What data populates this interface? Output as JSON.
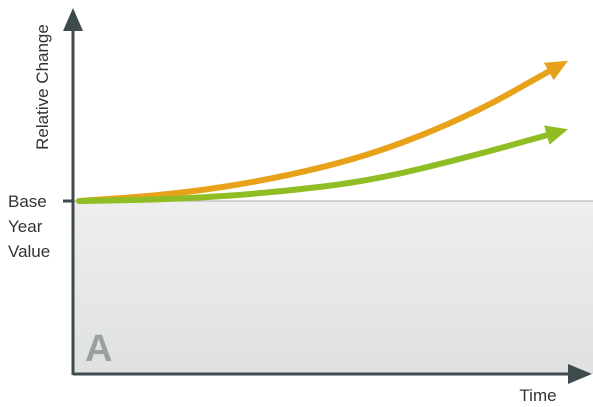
{
  "chart_data": {
    "type": "line",
    "panel_label": "A",
    "xlabel": "Time",
    "ylabel": "Relative Change",
    "baseline_label": [
      "Base",
      "Year",
      "Value"
    ],
    "xlim": [
      0,
      1
    ],
    "ylim": [
      -1,
      1
    ],
    "baseline_value": 0,
    "grid": false,
    "legend": "none",
    "colors": {
      "axis": "#3f4a4e",
      "baseline": "#b8bcbd",
      "upper_region": "#ffffff",
      "lower_region": "#e7e8e8",
      "orange_series": "#e8a219",
      "green_series": "#8fbd23"
    },
    "series": [
      {
        "color": "orange",
        "x": [
          0,
          0.2,
          0.4,
          0.6,
          0.8,
          1
        ],
        "y": [
          0,
          0.04,
          0.13,
          0.27,
          0.5,
          0.82
        ]
      },
      {
        "color": "green",
        "x": [
          0,
          0.2,
          0.4,
          0.6,
          0.8,
          1
        ],
        "y": [
          0,
          0.01,
          0.05,
          0.12,
          0.26,
          0.42
        ]
      }
    ]
  }
}
